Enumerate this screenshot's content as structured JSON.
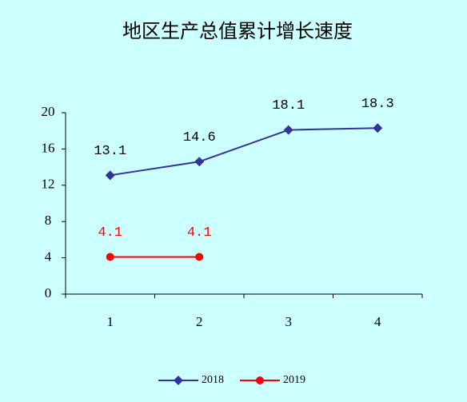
{
  "chart_data": {
    "type": "line",
    "title": "地区生产总值累计增长速度",
    "categories": [
      "1",
      "2",
      "3",
      "4"
    ],
    "series": [
      {
        "name": "2018",
        "color": "#333399",
        "marker": "diamond",
        "values": [
          13.1,
          14.6,
          18.1,
          18.3
        ]
      },
      {
        "name": "2019",
        "color": "#ff0000",
        "marker": "circle",
        "values": [
          4.1,
          4.1,
          null,
          null
        ]
      }
    ],
    "ylim": [
      0,
      20
    ],
    "yticks": [
      0,
      4,
      8,
      12,
      16,
      20
    ],
    "grid": false,
    "legend": "bottom"
  }
}
